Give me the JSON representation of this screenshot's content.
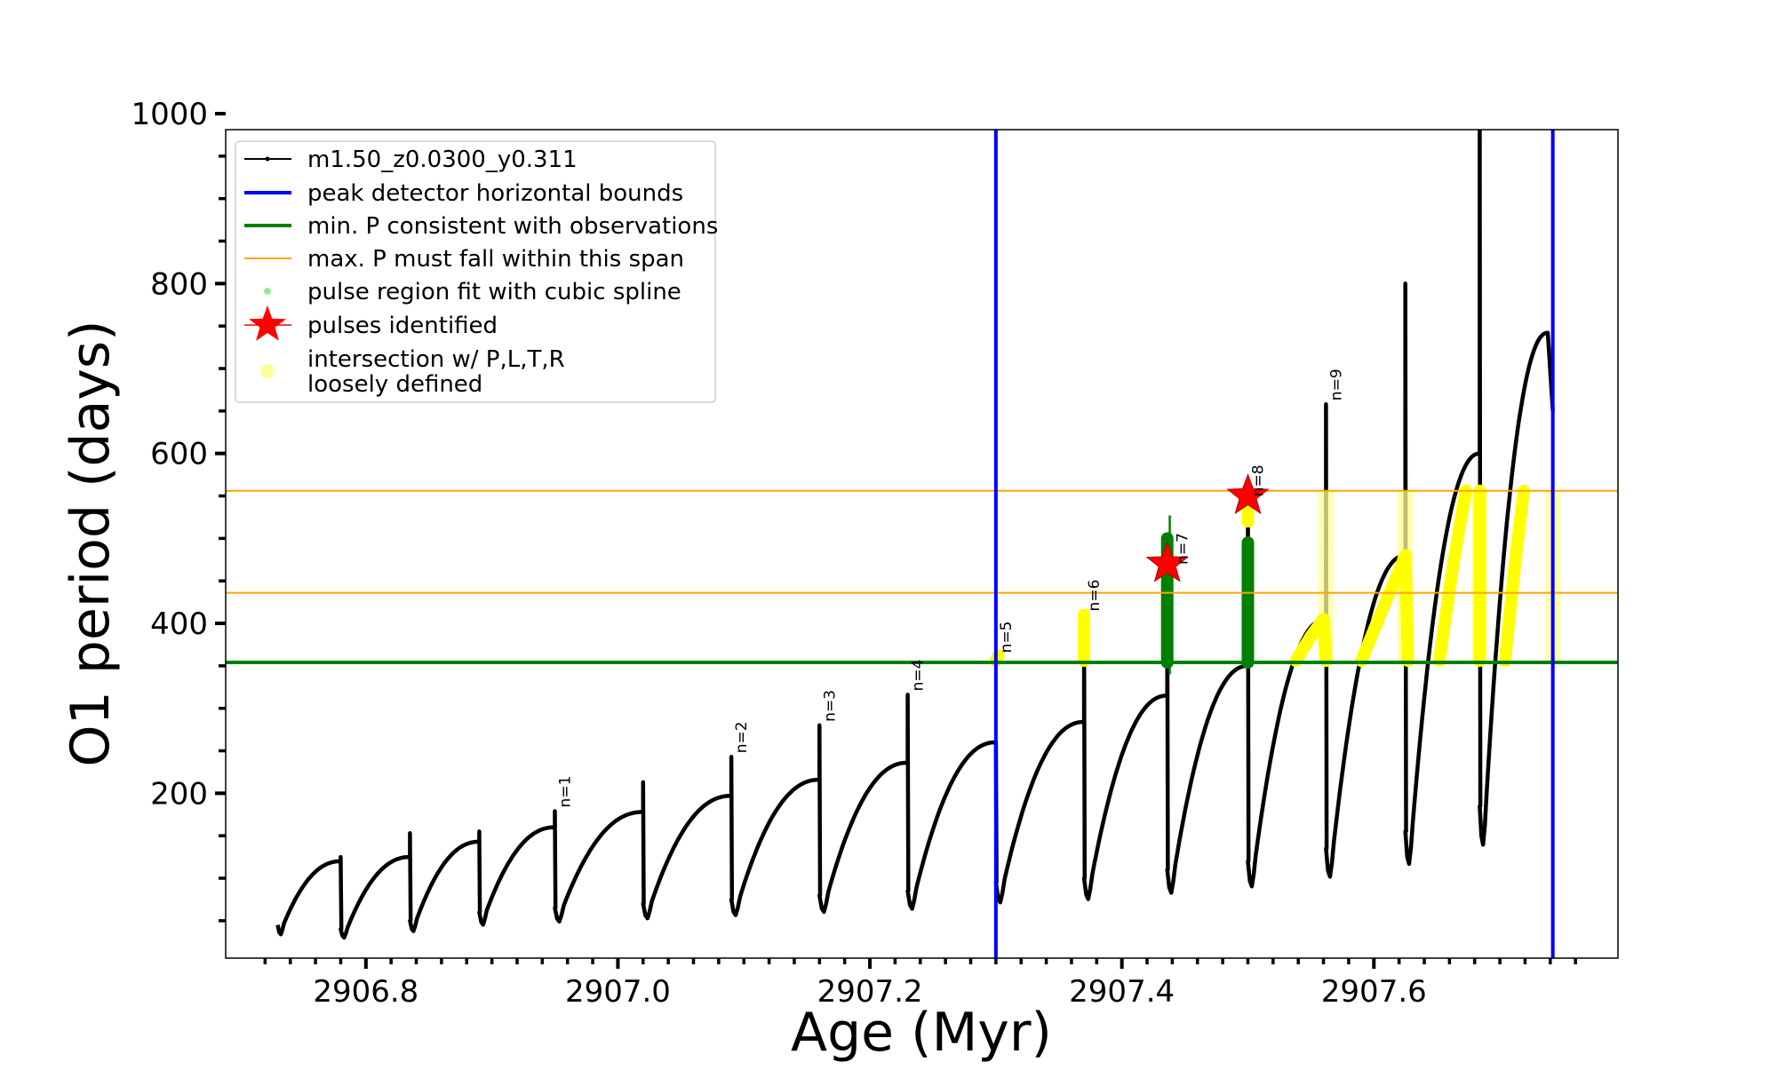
{
  "chart_data": {
    "type": "line",
    "xlabel": "Age (Myr)",
    "ylabel": "O1 period (days)",
    "xlim": [
      2906.69,
      2907.79
    ],
    "ylim": [
      25,
      1000
    ],
    "x_ticks": [
      {
        "value": 2906.8,
        "label": "2906.8"
      },
      {
        "value": 2907.0,
        "label": "2907.0"
      },
      {
        "value": 2907.2,
        "label": "2907.2"
      },
      {
        "value": 2907.4,
        "label": "2907.4"
      },
      {
        "value": 2907.6,
        "label": "2907.6"
      }
    ],
    "y_ticks": [
      {
        "value": 200,
        "label": "200"
      },
      {
        "value": 400,
        "label": "400"
      },
      {
        "value": 600,
        "label": "600"
      },
      {
        "value": 800,
        "label": "800"
      },
      {
        "value": 1000,
        "label": "1000"
      }
    ],
    "legend_position": "top-left",
    "legend": [
      {
        "label": "m1.50_z0.0300_y0.311",
        "kind": "line-dots",
        "color": "#000000"
      },
      {
        "label": "peak detector horizontal bounds",
        "kind": "line-thick",
        "color": "#0000ff"
      },
      {
        "label": "min. P consistent with observations",
        "kind": "line-thick",
        "color": "#008000"
      },
      {
        "label": "max. P must fall within this span",
        "kind": "line-thin",
        "color": "#ffa500"
      },
      {
        "label": "pulse region fit with cubic spline",
        "kind": "dot",
        "color": "#90ee90"
      },
      {
        "label": "pulses identified",
        "kind": "star",
        "color": "#ff0000"
      },
      {
        "label": "intersection w/ P,L,T,R",
        "label2": "loosely defined",
        "kind": "big-dot",
        "color": "#ffff99"
      }
    ],
    "colors": {
      "track": "#000000",
      "bounds": "#0000ff",
      "min_p": "#008000",
      "max_p": "#ffa500",
      "spline": "#008000",
      "star": "#ff0000",
      "intersection": "#ffff00",
      "intersection_loose": "#ffff99"
    },
    "peak_detector_bounds_x": [
      2907.3,
      2907.742
    ],
    "min_p": 354,
    "max_p_span": [
      436,
      556
    ],
    "pulse_labels": [
      {
        "label": "n=1",
        "x": 2906.95,
        "y": 179
      },
      {
        "label": "n=2",
        "x": 2907.09,
        "y": 243
      },
      {
        "label": "n=3",
        "x": 2907.16,
        "y": 280
      },
      {
        "label": "n=4",
        "x": 2907.23,
        "y": 316
      },
      {
        "label": "n=5",
        "x": 2907.3,
        "y": 361
      },
      {
        "label": "n=6",
        "x": 2907.37,
        "y": 410
      },
      {
        "label": "n=7",
        "x": 2907.44,
        "y": 465
      },
      {
        "label": "n=8",
        "x": 2907.5,
        "y": 545
      },
      {
        "label": "n=9",
        "x": 2907.562,
        "y": 658
      }
    ],
    "pulses_identified": [
      {
        "x": 2907.436,
        "y": 470
      },
      {
        "x": 2907.5,
        "y": 550
      }
    ],
    "pulse_times": [
      2906.73,
      2906.78,
      2906.835,
      2906.89,
      2906.95,
      2907.02,
      2907.09,
      2907.16,
      2907.23,
      2907.3,
      2907.37,
      2907.436,
      2907.5,
      2907.562,
      2907.625,
      2907.684
    ],
    "cycle_minima": [
      40,
      50,
      60,
      65,
      70,
      75,
      80,
      85,
      95,
      100,
      110,
      120,
      135,
      155,
      185
    ],
    "cycle_maxima": [
      120,
      125,
      143,
      160,
      178,
      197,
      216,
      236,
      260,
      284,
      315,
      350,
      405,
      480,
      600,
      742
    ],
    "pulse_spikes": [
      72,
      125,
      153,
      155,
      179,
      213,
      243,
      280,
      316,
      260,
      410,
      465,
      545,
      658,
      800,
      1000,
      1000
    ],
    "final_max_age": 2907.738
  }
}
